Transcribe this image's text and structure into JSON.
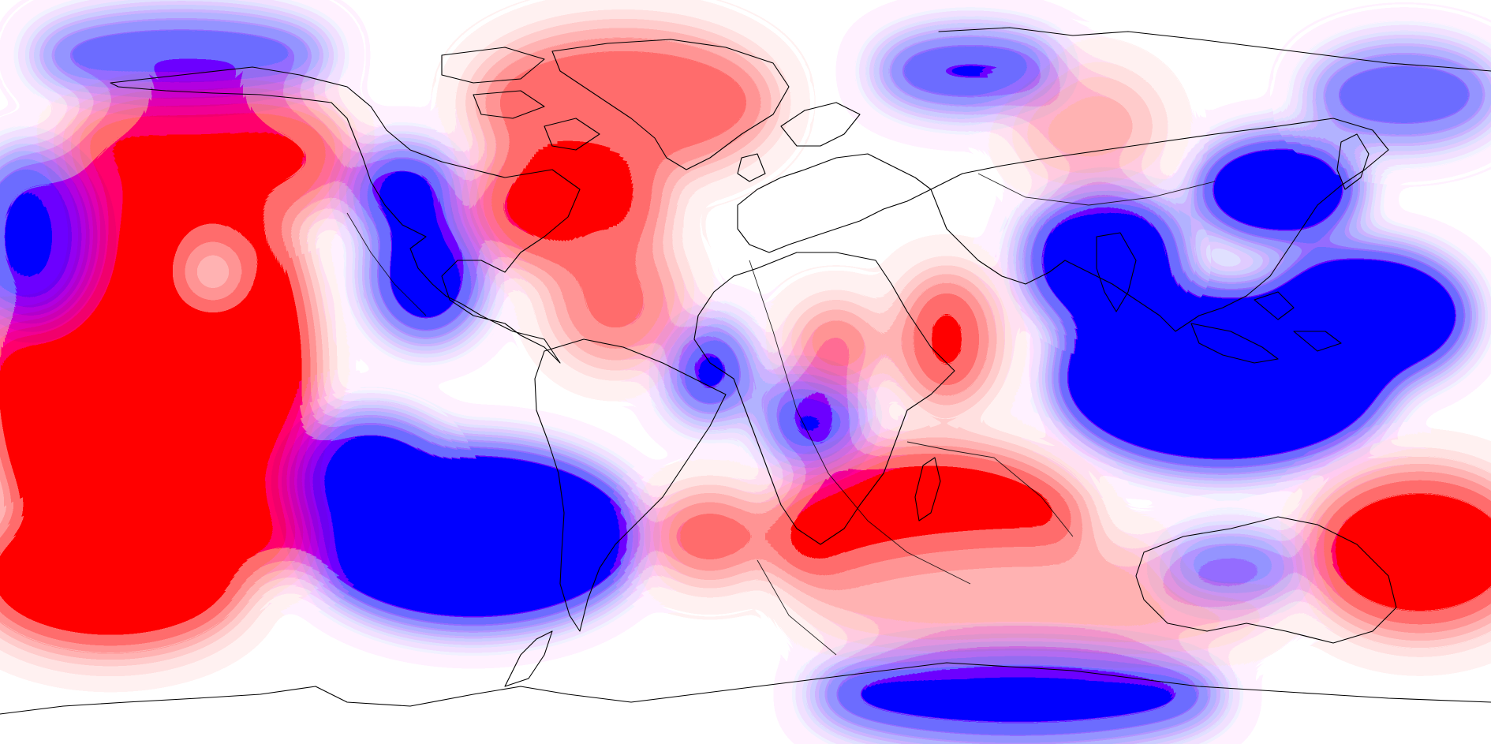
{
  "map": {
    "projection": "equirectangular",
    "center_longitude": 0,
    "colormap": {
      "positive": "#ff0000",
      "neutral": "#ffffff",
      "negative": "#0000ff"
    },
    "coastline_color": "#000000",
    "shows_plate_boundaries": true,
    "shows_legend": false,
    "shows_title": false
  }
}
